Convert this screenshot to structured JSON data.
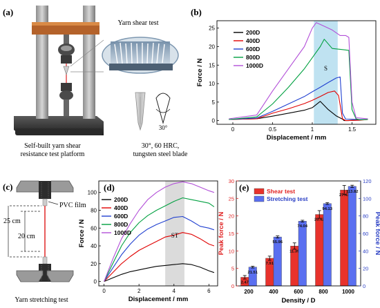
{
  "panel_a": {
    "label": "(a)",
    "inset_title": "Yarn shear test",
    "caption_line1": "Self-built yarn shear",
    "caption_line2": "resistance test platform",
    "blade_angle": "30°",
    "blade_spec_line1": "30°,  60 HRC,",
    "blade_spec_line2": "tungsten steel  blade"
  },
  "panel_c": {
    "label": "(c)",
    "film_label": "PVC film",
    "dim_outer": "25 cm",
    "dim_inner": "20 cm",
    "caption": "Yarn stretching test"
  },
  "chart_data": [
    {
      "id": "b",
      "label": "(b)",
      "type": "line",
      "xlabel": "Displacement / mm",
      "ylabel": "Force / N",
      "xlim": [
        -0.2,
        1.8
      ],
      "ylim": [
        -1,
        27
      ],
      "xticks": [
        0,
        0.5,
        1,
        1.5
      ],
      "xtick_labels": [
        "0",
        "0.5",
        "1",
        "1.5"
      ],
      "yticks": [
        0,
        5,
        10,
        15,
        20,
        25
      ],
      "yticks_labels": [
        "0",
        "5",
        "10",
        "15",
        "20",
        "25"
      ],
      "band": {
        "x": [
          1.02,
          1.32
        ],
        "color": "#a9d8ec",
        "label": "S"
      },
      "legend_position": "top-left",
      "series": [
        {
          "name": "200D",
          "color": "#000000",
          "x": [
            -0.05,
            0.3,
            0.5,
            0.7,
            0.9,
            1.0,
            1.1,
            1.2,
            1.3,
            1.38,
            1.4,
            1.45,
            1.6,
            1.7
          ],
          "y": [
            0.3,
            0.5,
            1.2,
            2.0,
            2.8,
            3.5,
            5.2,
            3.0,
            1.3,
            0.4,
            0,
            0,
            0.2,
            0.3
          ]
        },
        {
          "name": "400D",
          "color": "#e00000",
          "x": [
            -0.05,
            0.3,
            0.5,
            0.7,
            0.9,
            1.0,
            1.1,
            1.2,
            1.28,
            1.33,
            1.38,
            1.42,
            1.6,
            1.7
          ],
          "y": [
            0.3,
            0.5,
            2.0,
            3.2,
            4.6,
            5.5,
            6.5,
            7.6,
            8.0,
            6.8,
            0.5,
            0,
            0.1,
            0.3
          ]
        },
        {
          "name": "600D",
          "color": "#1f3fd0",
          "x": [
            -0.05,
            0.3,
            0.5,
            0.7,
            0.9,
            1.0,
            1.1,
            1.2,
            1.3,
            1.35,
            1.38,
            1.42,
            1.6,
            1.7
          ],
          "y": [
            0.3,
            0.7,
            2.5,
            4.5,
            6.5,
            7.8,
            9.0,
            10.3,
            11.5,
            11.8,
            2.0,
            0.4,
            0.3,
            0.3
          ]
        },
        {
          "name": "800D",
          "color": "#00a040",
          "x": [
            -0.05,
            0.3,
            0.5,
            0.7,
            0.9,
            1.0,
            1.1,
            1.15,
            1.25,
            1.38,
            1.46,
            1.5,
            1.55,
            1.6,
            1.7
          ],
          "y": [
            0.3,
            1.0,
            4.5,
            9.0,
            14.0,
            17.0,
            20.0,
            22.0,
            19.5,
            19.2,
            19.0,
            3.0,
            0.5,
            0.2,
            0.3
          ]
        },
        {
          "name": "1000D",
          "color": "#b24fd8",
          "x": [
            -0.05,
            0.3,
            0.5,
            0.7,
            0.9,
            1.0,
            1.05,
            1.15,
            1.25,
            1.35,
            1.42,
            1.46,
            1.5,
            1.55,
            1.7
          ],
          "y": [
            0.5,
            1.5,
            8.0,
            14.0,
            20.0,
            25.0,
            26.5,
            25.5,
            24.5,
            23.0,
            23.0,
            22.5,
            5.0,
            0.8,
            0.5
          ]
        }
      ]
    },
    {
      "id": "d",
      "label": "(d)",
      "type": "line",
      "xlabel": "Displacement / mm",
      "ylabel": "Force / N",
      "xlim": [
        -0.3,
        6.5
      ],
      "ylim": [
        -5,
        113
      ],
      "xticks": [
        0,
        2,
        4,
        6
      ],
      "xtick_labels": [
        "0",
        "2",
        "4",
        "6"
      ],
      "yticks": [
        0,
        20,
        40,
        60,
        80,
        100
      ],
      "yticks_labels": [
        "0",
        "20",
        "40",
        "60",
        "80",
        "100"
      ],
      "band": {
        "x": [
          3.5,
          4.6
        ],
        "color": "#cfcfcf",
        "label": "ST"
      },
      "legend_position": "top-left",
      "series": [
        {
          "name": "200D",
          "color": "#000000",
          "x": [
            0,
            0.5,
            1.0,
            1.5,
            2.0,
            2.5,
            3.0,
            3.5,
            4.0,
            4.5,
            5.0,
            5.5,
            6.0,
            6.3
          ],
          "y": [
            0,
            4,
            8,
            11,
            13,
            15,
            17,
            18,
            19,
            20,
            19,
            16,
            12,
            10
          ]
        },
        {
          "name": "400D",
          "color": "#e00000",
          "x": [
            0,
            0.5,
            1.0,
            1.5,
            2.0,
            2.5,
            3.0,
            3.5,
            4.0,
            4.5,
            5.0,
            5.5,
            6.0,
            6.3
          ],
          "y": [
            0,
            10,
            20,
            28,
            35,
            40,
            45,
            50,
            52,
            55,
            53,
            48,
            42,
            40
          ]
        },
        {
          "name": "600D",
          "color": "#1f3fd0",
          "x": [
            0,
            0.5,
            1.0,
            1.5,
            2.0,
            2.5,
            3.0,
            3.5,
            4.0,
            4.5,
            5.0,
            5.5,
            6.0,
            6.3
          ],
          "y": [
            0,
            15,
            30,
            42,
            52,
            59,
            64,
            68,
            72,
            73,
            68,
            62,
            60,
            58
          ]
        },
        {
          "name": "800D",
          "color": "#00a040",
          "x": [
            0,
            0.5,
            1.0,
            1.5,
            2.0,
            2.5,
            3.0,
            3.5,
            4.0,
            4.5,
            5.0,
            5.5,
            6.0,
            6.3
          ],
          "y": [
            0,
            20,
            40,
            55,
            66,
            74,
            80,
            85,
            90,
            94,
            92,
            90,
            88,
            84
          ]
        },
        {
          "name": "1000D",
          "color": "#b24fd8",
          "x": [
            0,
            0.5,
            1.0,
            1.5,
            2.0,
            2.5,
            3.0,
            3.5,
            4.0,
            4.5,
            5.0,
            5.5,
            6.0,
            6.3
          ],
          "y": [
            0,
            25,
            48,
            65,
            80,
            92,
            100,
            106,
            110,
            112,
            110,
            106,
            102,
            100
          ]
        }
      ]
    },
    {
      "id": "e",
      "label": "(e)",
      "type": "bar",
      "xlabel": "Density / D",
      "ylabel_left": "Peak force / N",
      "ylabel_right": "Peak force / N",
      "categories": [
        "200",
        "400",
        "600",
        "800",
        "1000"
      ],
      "ylim_left": [
        0,
        30
      ],
      "ylim_right": [
        0,
        120
      ],
      "yticks_left": [
        0,
        5,
        10,
        15,
        20,
        25,
        30
      ],
      "yticks_left_labels": [
        "0",
        "5",
        "10",
        "15",
        "20",
        "25",
        "30"
      ],
      "yticks_right": [
        0,
        20,
        40,
        60,
        80,
        100,
        120
      ],
      "yticks_right_labels": [
        "0",
        "20",
        "40",
        "60",
        "80",
        "100",
        "120"
      ],
      "left_axis_color": "#e02020",
      "right_axis_color": "#2a3fc4",
      "legend_position": "top-left",
      "series": [
        {
          "name": "Shear test",
          "axis": "left",
          "color": "#e8322c",
          "values": [
            2.47,
            7.91,
            11.39,
            20.42,
            27.41
          ],
          "labels": [
            "2.47",
            "7.91",
            "11.39",
            "20.42",
            "27.41"
          ],
          "errors": [
            0.5,
            0.6,
            0.9,
            1.1,
            1.3
          ]
        },
        {
          "name": "Stretching test",
          "axis": "right",
          "color": "#5a6ff0",
          "values": [
            21.51,
            55.96,
            74.04,
            94.13,
            113.82
          ],
          "labels": [
            "21.51",
            "55.96",
            "74.04",
            "94.13",
            "113.82"
          ],
          "errors": [
            1.0,
            1.2,
            1.0,
            1.0,
            1.3
          ]
        }
      ]
    }
  ]
}
